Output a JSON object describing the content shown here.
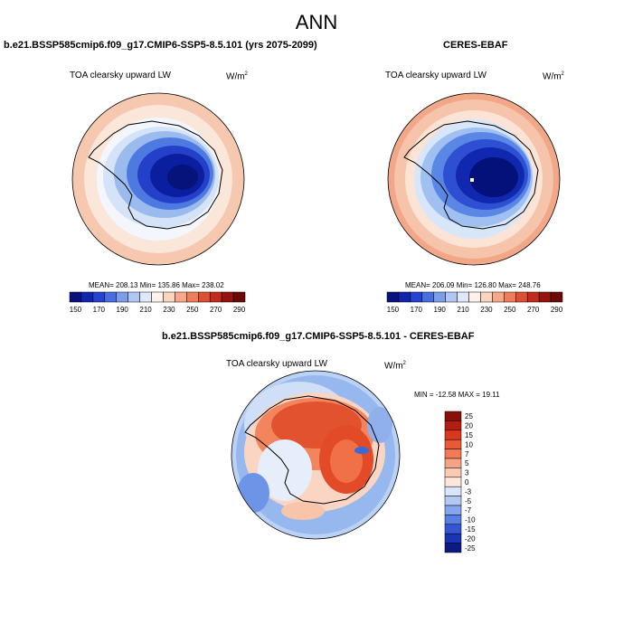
{
  "page_title": "ANN",
  "chart_data": [
    {
      "type": "heatmap",
      "projection": "south-polar-stereographic",
      "title": "b.e21.BSSP585cmip6.f09_g17.CMIP6-SSP5-8.5.101 (yrs 2075-2099)",
      "variable": "TOA clearsky upward LW",
      "units_base": "W/m",
      "units_exp": "2",
      "stats_text": "MEAN= 208.13  Min= 135.86  Max= 238.02",
      "stats": {
        "mean": 208.13,
        "min": 135.86,
        "max": 238.02
      },
      "colorbar": {
        "orientation": "horizontal",
        "levels": [
          150,
          160,
          170,
          180,
          190,
          200,
          210,
          220,
          230,
          240,
          250,
          260,
          270,
          280,
          290
        ],
        "tick_labels": [
          "150",
          "170",
          "190",
          "210",
          "230",
          "250",
          "270",
          "290"
        ]
      }
    },
    {
      "type": "heatmap",
      "projection": "south-polar-stereographic",
      "title": "CERES-EBAF",
      "variable": "TOA clearsky upward LW",
      "units_base": "W/m",
      "units_exp": "2",
      "stats_text": "MEAN= 206.09  Min= 126.80  Max= 248.76",
      "stats": {
        "mean": 206.09,
        "min": 126.8,
        "max": 248.76
      },
      "colorbar": {
        "orientation": "horizontal",
        "levels": [
          150,
          160,
          170,
          180,
          190,
          200,
          210,
          220,
          230,
          240,
          250,
          260,
          270,
          280,
          290
        ],
        "tick_labels": [
          "150",
          "170",
          "190",
          "210",
          "230",
          "250",
          "270",
          "290"
        ]
      }
    },
    {
      "type": "heatmap",
      "projection": "south-polar-stereographic",
      "title": "b.e21.BSSP585cmip6.f09_g17.CMIP6-SSP5-8.5.101 - CERES-EBAF",
      "variable": "TOA clearsky upward LW",
      "units_base": "W/m",
      "units_exp": "2",
      "stats_text": "MIN = -12.58 MAX =  19.11",
      "stats": {
        "min": -12.58,
        "max": 19.11
      },
      "colorbar": {
        "orientation": "vertical",
        "levels": [
          25,
          20,
          15,
          10,
          7,
          5,
          3,
          0,
          -3,
          -5,
          -7,
          -10,
          -15,
          -20,
          -25
        ],
        "tick_labels": [
          "25",
          "20",
          "15",
          "10",
          "7",
          "5",
          "3",
          "0",
          "-3",
          "-5",
          "-7",
          "-10",
          "-15",
          "-20",
          "-25"
        ]
      }
    }
  ]
}
